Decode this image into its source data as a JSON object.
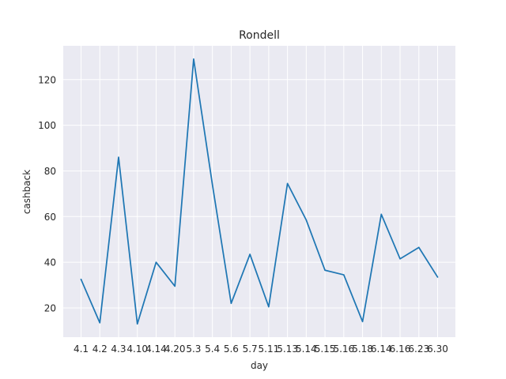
{
  "chart_data": {
    "type": "line",
    "title": "Rondell",
    "xlabel": "day",
    "ylabel": "cashback",
    "categories": [
      "4.1",
      "4.2",
      "4.3",
      "4.10",
      "4.14",
      "4.20",
      "5.3",
      "5.4",
      "5.6",
      "5.7",
      "5.11",
      "5.13",
      "5.14",
      "5.15",
      "5.16",
      "5.18",
      "6.14",
      "6.16",
      "6.23",
      "6.30"
    ],
    "series": [
      {
        "values": [
          32.5,
          13.5,
          86,
          13,
          40,
          29.5,
          129,
          74,
          22,
          43.5,
          20.5,
          74.5,
          58.5,
          36.5,
          34.5,
          14,
          61,
          41.5,
          46.5,
          33.5
        ]
      }
    ],
    "ylim": [
      7.2,
      134.8
    ],
    "yticks": [
      "20",
      "40",
      "60",
      "80",
      "100",
      "120"
    ],
    "grid": true,
    "legend": "none",
    "colors": {
      "plot_background": "#eaeaf2",
      "grid": "#ffffff",
      "line": "#1f77b4",
      "text": "#262626"
    }
  }
}
